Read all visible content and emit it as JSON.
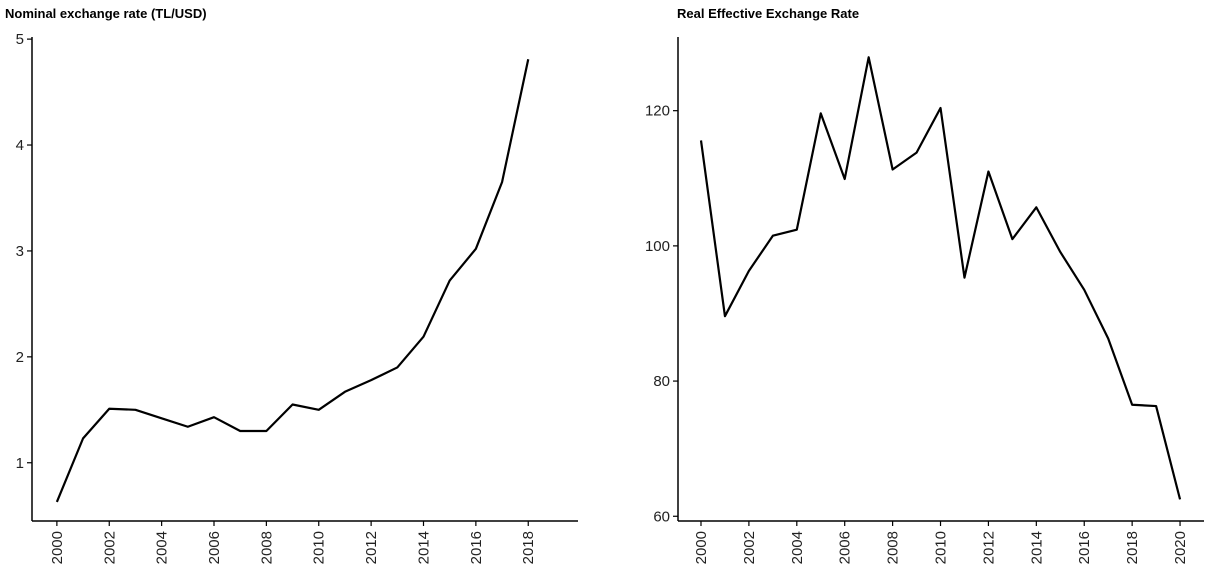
{
  "chart_data": [
    {
      "type": "line",
      "title": "Nominal exchange rate (TL/USD)",
      "x": [
        2000,
        2001,
        2002,
        2003,
        2004,
        2005,
        2006,
        2007,
        2008,
        2009,
        2010,
        2011,
        2012,
        2013,
        2014,
        2015,
        2016,
        2017,
        2018
      ],
      "series": [
        {
          "color": "#000000",
          "values": [
            0.63,
            1.23,
            1.51,
            1.5,
            1.42,
            1.34,
            1.43,
            1.3,
            1.3,
            1.55,
            1.5,
            1.67,
            1.78,
            1.9,
            2.19,
            2.72,
            3.02,
            3.65,
            4.81
          ]
        }
      ],
      "xlim": [
        1999.05,
        2019.9
      ],
      "xticks": [
        2000,
        2002,
        2004,
        2006,
        2008,
        2010,
        2012,
        2014,
        2016,
        2018
      ],
      "ylim": [
        0.45,
        5.02
      ],
      "yticks": [
        1,
        2,
        3,
        4,
        5
      ],
      "grid": false
    },
    {
      "type": "line",
      "title": "Real Effective Exchange Rate",
      "x": [
        2000,
        2001,
        2002,
        2003,
        2004,
        2005,
        2006,
        2007,
        2008,
        2009,
        2010,
        2011,
        2012,
        2013,
        2014,
        2015,
        2016,
        2017,
        2018,
        2019,
        2020
      ],
      "series": [
        {
          "color": "#000000",
          "values": [
            115.6,
            89.6,
            96.3,
            101.5,
            102.4,
            119.6,
            109.9,
            127.9,
            111.3,
            113.8,
            120.4,
            95.3,
            111.0,
            101.0,
            105.7,
            99.1,
            93.5,
            86.3,
            76.5,
            76.3,
            62.5
          ]
        }
      ],
      "xlim": [
        1999.04,
        2021
      ],
      "xticks": [
        2000,
        2002,
        2004,
        2006,
        2008,
        2010,
        2012,
        2014,
        2016,
        2018,
        2020
      ],
      "ylim": [
        59.3,
        130.9
      ],
      "yticks": [
        60,
        80,
        100,
        120
      ],
      "grid": false
    }
  ]
}
